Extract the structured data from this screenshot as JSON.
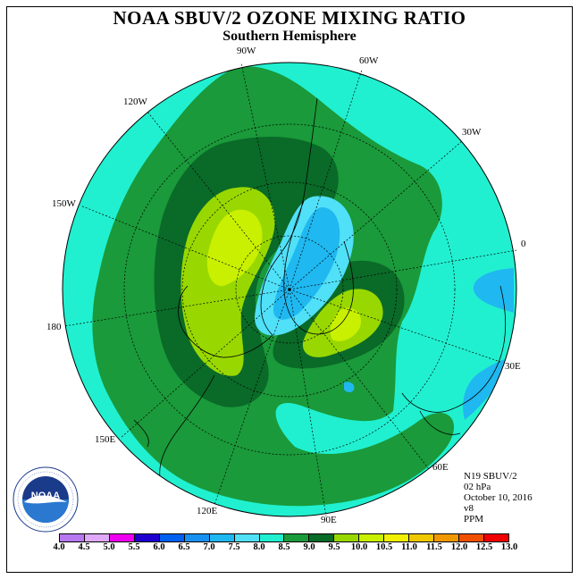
{
  "header": {
    "title": "NOAA SBUV/2 OZONE MIXING RATIO",
    "subtitle": "Southern Hemisphere"
  },
  "map": {
    "projection": "polar stereographic (south pole centered)",
    "longitude_labels": [
      {
        "text": "90W"
      },
      {
        "text": "60W"
      },
      {
        "text": "30W"
      },
      {
        "text": "0"
      },
      {
        "text": "30E"
      },
      {
        "text": "60E"
      },
      {
        "text": "90E"
      },
      {
        "text": "120E"
      },
      {
        "text": "150E"
      },
      {
        "text": "180"
      },
      {
        "text": "150W"
      },
      {
        "text": "120W"
      }
    ],
    "field_regions": [
      {
        "level": "7.0-7.5",
        "color": "#1FB8F0",
        "description": "ozone minimum centered near pole (Antarctic Peninsula side)"
      },
      {
        "level": "9.0-10.0",
        "color": "#C8F000",
        "description": "maximum over South Pacific (~150W)"
      },
      {
        "level": "9.0-10.0",
        "color": "#C8F000",
        "description": "secondary maximum south of Africa / Indian Ocean"
      }
    ]
  },
  "info": {
    "satellite": "N19 SBUV/2",
    "level": "02 hPa",
    "date": "October 10, 2016",
    "version": "v8",
    "units": "PPM"
  },
  "colorbar": {
    "labels": [
      "4.0",
      "4.5",
      "5.0",
      "5.5",
      "6.0",
      "6.5",
      "7.0",
      "7.5",
      "8.0",
      "8.5",
      "9.0",
      "9.5",
      "10.0",
      "10.5",
      "11.0",
      "11.5",
      "12.0",
      "12.5",
      "13.0"
    ],
    "colors": [
      "#B878F0",
      "#E0A8F8",
      "#F000F0",
      "#2000D0",
      "#0060F0",
      "#1890F0",
      "#1FB8F0",
      "#50E0F8",
      "#20F0D0",
      "#1A9A3A",
      "#0A6A28",
      "#98D800",
      "#C8F000",
      "#F0F000",
      "#F0C800",
      "#F09800",
      "#F05000",
      "#F00000",
      "#7A5030"
    ]
  },
  "logo": {
    "text": "NOAA",
    "ring_text": "NATIONAL OCEANIC AND ATMOSPHERIC ADMINISTRATION · U.S. DEPARTMENT OF COMMERCE"
  }
}
